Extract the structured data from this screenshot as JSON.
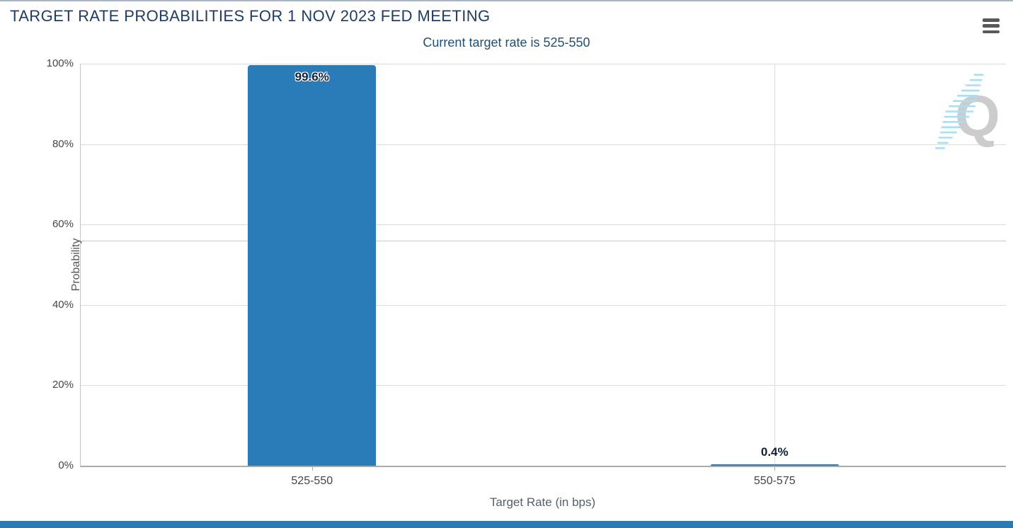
{
  "header": {
    "title": "TARGET RATE PROBABILITIES FOR 1 NOV 2023 FED MEETING",
    "menu_icon": "hamburger-icon"
  },
  "chart_data": {
    "type": "bar",
    "title": "TARGET RATE PROBABILITIES FOR 1 NOV 2023 FED MEETING",
    "subtitle": "Current target rate is 525-550",
    "categories": [
      "525-550",
      "550-575"
    ],
    "values": [
      99.6,
      0.4
    ],
    "value_labels": [
      "99.6%",
      "0.4%"
    ],
    "xlabel": "Target Rate (in bps)",
    "ylabel": "Probability",
    "ylim": [
      0,
      100
    ],
    "yticks": [
      0,
      20,
      40,
      60,
      80,
      100
    ],
    "ytick_labels": [
      "0%",
      "20%",
      "40%",
      "60%",
      "80%",
      "100%"
    ],
    "grid": true,
    "extra_hline": 56,
    "legend": "none",
    "bar_color": "#2a7cb9"
  },
  "watermark": {
    "letter": "Q",
    "gray": "#cccccc",
    "blue": "#a5e0f5"
  },
  "colors": {
    "title_navy": "#1e3c64",
    "subtitle_navy": "#1d4f7c",
    "bar_blue": "#2a7cb9",
    "footer_blue": "#2a7ab5",
    "grid_gray": "#dcdcdc",
    "axis_gray": "#ababab",
    "tick_text": "#454545"
  }
}
